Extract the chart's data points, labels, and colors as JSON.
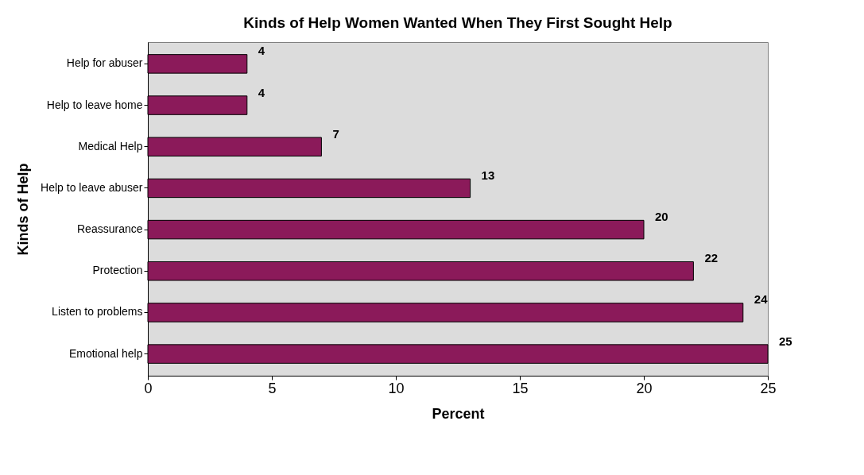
{
  "chart_data": {
    "type": "bar",
    "orientation": "horizontal",
    "title": "Kinds of Help Women Wanted When They First Sought Help",
    "xlabel": "Percent",
    "ylabel": "Kinds of Help",
    "categories": [
      "Help for abuser",
      "Help to leave home",
      "Medical Help",
      "Help to leave abuser",
      "Reassurance",
      "Protection",
      "Listen to problems",
      "Emotional help"
    ],
    "values": [
      4,
      4,
      7,
      13,
      20,
      22,
      24,
      25
    ],
    "color": "#8b1a5a",
    "xlim": [
      0,
      25
    ],
    "xticks": [
      0,
      5,
      10,
      15,
      20,
      25
    ],
    "data_labels": true
  }
}
